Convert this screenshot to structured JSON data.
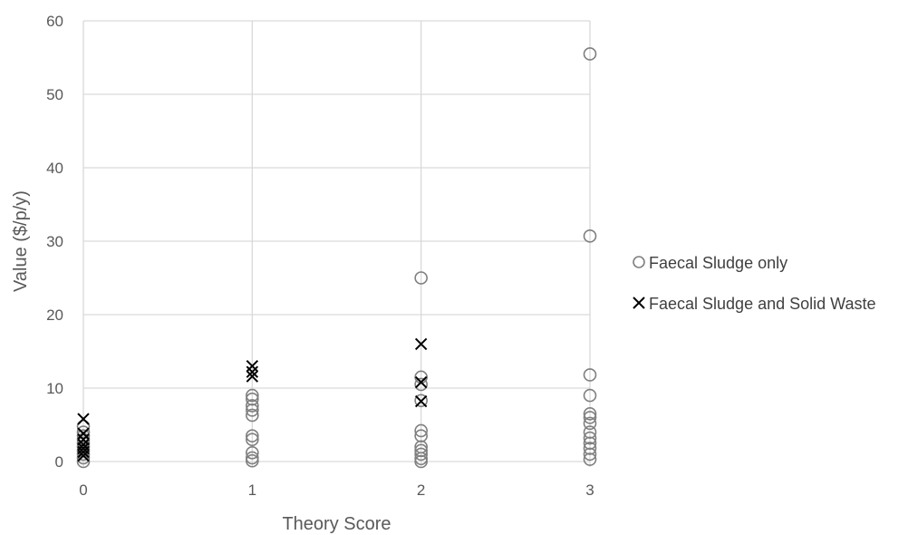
{
  "chart_data": {
    "type": "scatter",
    "title": "",
    "xlabel": "Theory Score",
    "ylabel": "Value ($/p/y)",
    "xlim": [
      0,
      3
    ],
    "ylim": [
      0,
      60
    ],
    "xticks": [
      0,
      1,
      2,
      3
    ],
    "yticks": [
      0,
      10,
      20,
      30,
      40,
      50,
      60
    ],
    "grid": true,
    "legend_position": "right",
    "series": [
      {
        "name": "Faecal Sludge only",
        "marker": "circle",
        "color": "#7f7f7f",
        "points": [
          [
            0,
            0.0
          ],
          [
            0,
            0.5
          ],
          [
            0,
            1.0
          ],
          [
            0,
            1.5
          ],
          [
            0,
            2.0
          ],
          [
            0,
            2.5
          ],
          [
            0,
            3.0
          ],
          [
            0,
            3.5
          ],
          [
            0,
            4.0
          ],
          [
            0,
            4.8
          ],
          [
            1,
            0.1
          ],
          [
            1,
            0.5
          ],
          [
            1,
            1.2
          ],
          [
            1,
            3.0
          ],
          [
            1,
            3.5
          ],
          [
            1,
            6.3
          ],
          [
            1,
            7.0
          ],
          [
            1,
            7.6
          ],
          [
            1,
            8.5
          ],
          [
            1,
            9.0
          ],
          [
            2,
            0.0
          ],
          [
            2,
            0.4
          ],
          [
            2,
            1.0
          ],
          [
            2,
            1.5
          ],
          [
            2,
            2.0
          ],
          [
            2,
            3.5
          ],
          [
            2,
            4.2
          ],
          [
            2,
            8.3
          ],
          [
            2,
            10.5
          ],
          [
            2,
            11.5
          ],
          [
            2,
            25.0
          ],
          [
            3,
            0.3
          ],
          [
            3,
            1.0
          ],
          [
            3,
            1.8
          ],
          [
            3,
            2.5
          ],
          [
            3,
            3.2
          ],
          [
            3,
            4.0
          ],
          [
            3,
            5.2
          ],
          [
            3,
            6.0
          ],
          [
            3,
            6.5
          ],
          [
            3,
            9.0
          ],
          [
            3,
            11.8
          ],
          [
            3,
            30.7
          ],
          [
            3,
            55.5
          ]
        ]
      },
      {
        "name": "Faecal Sludge and Solid Waste",
        "marker": "x",
        "color": "#000000",
        "points": [
          [
            0,
            0.8
          ],
          [
            0,
            1.3
          ],
          [
            0,
            1.8
          ],
          [
            0,
            2.3
          ],
          [
            0,
            3.0
          ],
          [
            0,
            3.8
          ],
          [
            0,
            5.8
          ],
          [
            1,
            11.6
          ],
          [
            1,
            12.2
          ],
          [
            1,
            13.0
          ],
          [
            2,
            8.2
          ],
          [
            2,
            10.8
          ],
          [
            2,
            16.0
          ]
        ]
      }
    ]
  }
}
